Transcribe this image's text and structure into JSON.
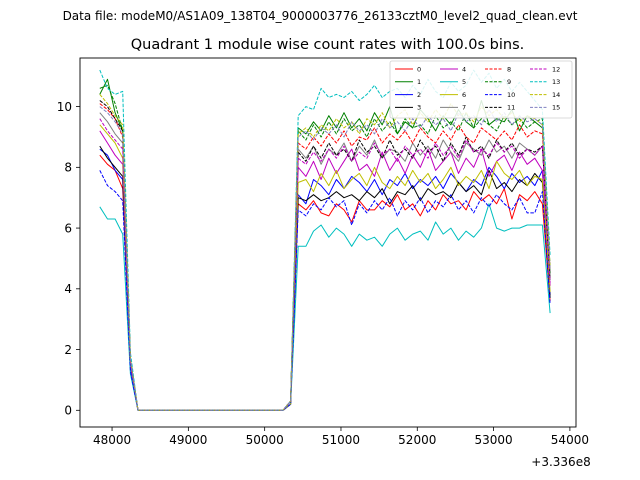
{
  "figure": {
    "suptitle": "Data file: modeM0/AS1A09_138T04_9000003776_26133cztM0_level2_quad_clean.evt"
  },
  "chart_data": {
    "type": "line",
    "title": "Quadrant 1 module wise count rates with 100.0s bins.",
    "xlabel": "",
    "ylabel": "",
    "x_offset_label": "+3.336e8",
    "xlim": [
      47580,
      54080
    ],
    "ylim": [
      -0.55,
      11.6
    ],
    "x_ticks": [
      48000,
      49000,
      50000,
      51000,
      52000,
      53000,
      54000
    ],
    "y_ticks": [
      0,
      2,
      4,
      6,
      8,
      10
    ],
    "grid": false,
    "legend": {
      "placement": "top-right",
      "columns": 4
    },
    "x": [
      47840,
      47940,
      48040,
      48140,
      48240,
      48340,
      48440,
      48540,
      48640,
      48740,
      48840,
      48940,
      49040,
      49140,
      49240,
      49340,
      49440,
      49540,
      49640,
      49740,
      49840,
      49940,
      50040,
      50140,
      50240,
      50340,
      50440,
      50540,
      50640,
      50740,
      50840,
      50940,
      51040,
      51140,
      51240,
      51340,
      51440,
      51540,
      51640,
      51740,
      51840,
      51940,
      52040,
      52140,
      52240,
      52340,
      52440,
      52540,
      52640,
      52740,
      52840,
      52940,
      53040,
      53140,
      53240,
      53340,
      53440,
      53540,
      53640,
      53740
    ],
    "series": [
      {
        "name": "0",
        "color": "#ff0000",
        "dash": "solid",
        "values": [
          8.4,
          8.1,
          7.9,
          7.3,
          1.4,
          0.0,
          0.0,
          0.0,
          0.0,
          0.0,
          0.0,
          0.0,
          0.0,
          0.0,
          0.0,
          0.0,
          0.0,
          0.0,
          0.0,
          0.0,
          0.0,
          0.0,
          0.0,
          0.0,
          0.0,
          0.2,
          6.8,
          6.6,
          6.9,
          6.5,
          6.4,
          6.8,
          6.6,
          6.2,
          6.9,
          6.6,
          6.6,
          6.9,
          6.7,
          7.1,
          6.6,
          6.8,
          6.4,
          6.9,
          6.6,
          7.1,
          6.8,
          6.9,
          6.6,
          7.2,
          6.9,
          7.1,
          6.8,
          7.3,
          6.3,
          7.1,
          6.9,
          7.2,
          6.8,
          3.6
        ]
      },
      {
        "name": "1",
        "color": "#008000",
        "dash": "solid",
        "values": [
          10.4,
          10.9,
          9.8,
          9.2,
          1.6,
          0.0,
          0.0,
          0.0,
          0.0,
          0.0,
          0.0,
          0.0,
          0.0,
          0.0,
          0.0,
          0.0,
          0.0,
          0.0,
          0.0,
          0.0,
          0.0,
          0.0,
          0.0,
          0.0,
          0.0,
          0.3,
          9.3,
          9.1,
          9.5,
          9.2,
          9.7,
          9.3,
          9.8,
          9.3,
          9.6,
          9.2,
          9.8,
          9.4,
          10.0,
          9.1,
          9.5,
          9.3,
          9.9,
          9.6,
          9.2,
          9.7,
          9.4,
          9.9,
          9.5,
          9.3,
          10.2,
          9.4,
          9.6,
          9.5,
          9.9,
          9.2,
          9.7,
          9.5,
          9.3,
          4.5
        ]
      },
      {
        "name": "2",
        "color": "#0000ff",
        "dash": "solid",
        "values": [
          8.6,
          8.4,
          7.9,
          7.6,
          1.4,
          0.0,
          0.0,
          0.0,
          0.0,
          0.0,
          0.0,
          0.0,
          0.0,
          0.0,
          0.0,
          0.0,
          0.0,
          0.0,
          0.0,
          0.0,
          0.0,
          0.0,
          0.0,
          0.0,
          0.0,
          0.2,
          7.1,
          6.8,
          7.6,
          7.4,
          7.1,
          7.6,
          7.3,
          7.7,
          7.5,
          7.2,
          7.6,
          7.1,
          7.6,
          7.4,
          7.8,
          7.3,
          7.6,
          7.4,
          7.7,
          7.3,
          7.8,
          7.5,
          7.2,
          7.6,
          7.4,
          8.0,
          7.7,
          7.3,
          7.8,
          7.5,
          7.7,
          7.4,
          7.9,
          3.8
        ]
      },
      {
        "name": "3",
        "color": "#000000",
        "dash": "solid",
        "values": [
          8.7,
          8.3,
          8.0,
          7.7,
          1.5,
          0.0,
          0.0,
          0.0,
          0.0,
          0.0,
          0.0,
          0.0,
          0.0,
          0.0,
          0.0,
          0.0,
          0.0,
          0.0,
          0.0,
          0.0,
          0.0,
          0.0,
          0.0,
          0.0,
          0.0,
          0.2,
          7.0,
          6.9,
          7.1,
          6.9,
          7.0,
          7.2,
          7.0,
          7.1,
          6.9,
          7.2,
          7.0,
          7.3,
          6.8,
          7.2,
          7.1,
          7.4,
          6.9,
          7.3,
          7.1,
          7.2,
          7.0,
          7.5,
          7.2,
          7.4,
          7.1,
          7.9,
          7.3,
          7.5,
          7.2,
          7.6,
          7.4,
          7.8,
          7.5,
          3.7
        ]
      },
      {
        "name": "4",
        "color": "#bf00bf",
        "dash": "solid",
        "values": [
          9.2,
          8.8,
          8.4,
          8.1,
          1.5,
          0.0,
          0.0,
          0.0,
          0.0,
          0.0,
          0.0,
          0.0,
          0.0,
          0.0,
          0.0,
          0.0,
          0.0,
          0.0,
          0.0,
          0.0,
          0.0,
          0.0,
          0.0,
          0.0,
          0.0,
          0.3,
          8.0,
          7.7,
          8.2,
          7.6,
          8.3,
          7.8,
          8.2,
          8.6,
          7.9,
          8.1,
          7.7,
          8.5,
          7.9,
          8.3,
          7.8,
          8.4,
          8.0,
          8.6,
          7.9,
          8.2,
          8.5,
          7.8,
          8.3,
          8.0,
          8.6,
          7.7,
          8.2,
          8.4,
          7.9,
          8.5,
          8.1,
          8.3,
          7.9,
          4.1
        ]
      },
      {
        "name": "5",
        "color": "#00bfbf",
        "dash": "solid",
        "values": [
          6.7,
          6.3,
          6.3,
          5.8,
          1.2,
          0.0,
          0.0,
          0.0,
          0.0,
          0.0,
          0.0,
          0.0,
          0.0,
          0.0,
          0.0,
          0.0,
          0.0,
          0.0,
          0.0,
          0.0,
          0.0,
          0.0,
          0.0,
          0.0,
          0.0,
          0.2,
          5.4,
          5.4,
          5.9,
          6.1,
          5.7,
          6.0,
          5.8,
          5.4,
          5.8,
          5.6,
          5.7,
          5.4,
          5.8,
          6.0,
          5.6,
          5.8,
          5.9,
          5.6,
          6.2,
          5.8,
          6.0,
          5.6,
          5.9,
          5.7,
          6.0,
          6.8,
          6.0,
          5.9,
          6.0,
          6.0,
          6.1,
          6.1,
          6.1,
          3.2
        ]
      },
      {
        "name": "6",
        "color": "#bfbf00",
        "dash": "solid",
        "values": [
          9.4,
          9.1,
          8.8,
          8.3,
          1.6,
          0.0,
          0.0,
          0.0,
          0.0,
          0.0,
          0.0,
          0.0,
          0.0,
          0.0,
          0.0,
          0.0,
          0.0,
          0.0,
          0.0,
          0.0,
          0.0,
          0.0,
          0.0,
          0.0,
          0.0,
          0.2,
          7.5,
          7.6,
          7.2,
          7.8,
          7.4,
          7.9,
          7.3,
          7.6,
          7.8,
          7.4,
          8.0,
          7.5,
          7.3,
          7.7,
          7.4,
          7.9,
          7.5,
          7.8,
          7.3,
          7.6,
          8.0,
          7.4,
          7.7,
          7.5,
          7.9,
          7.3,
          8.2,
          7.8,
          7.6,
          7.9,
          7.4,
          7.7,
          7.6,
          3.9
        ]
      },
      {
        "name": "7",
        "color": "#808080",
        "dash": "solid",
        "values": [
          9.8,
          9.5,
          9.1,
          8.8,
          1.6,
          0.0,
          0.0,
          0.0,
          0.0,
          0.0,
          0.0,
          0.0,
          0.0,
          0.0,
          0.0,
          0.0,
          0.0,
          0.0,
          0.0,
          0.0,
          0.0,
          0.0,
          0.0,
          0.0,
          0.0,
          0.3,
          8.6,
          8.3,
          8.7,
          8.1,
          8.6,
          8.4,
          8.8,
          8.2,
          8.7,
          8.4,
          8.9,
          8.3,
          8.6,
          8.5,
          8.2,
          8.8,
          8.4,
          8.7,
          8.3,
          8.9,
          8.5,
          8.2,
          8.8,
          8.6,
          8.4,
          8.9,
          8.5,
          8.7,
          8.3,
          8.8,
          8.6,
          8.4,
          8.7,
          4.3
        ]
      },
      {
        "name": "8",
        "color": "#ff0000",
        "dash": "dashed",
        "values": [
          10.1,
          9.9,
          9.6,
          9.0,
          1.7,
          0.0,
          0.0,
          0.0,
          0.0,
          0.0,
          0.0,
          0.0,
          0.0,
          0.0,
          0.0,
          0.0,
          0.0,
          0.0,
          0.0,
          0.0,
          0.0,
          0.0,
          0.0,
          0.0,
          0.0,
          0.3,
          8.8,
          8.6,
          9.0,
          8.7,
          9.1,
          8.8,
          9.2,
          8.7,
          9.0,
          8.9,
          9.3,
          8.8,
          9.1,
          8.9,
          9.2,
          8.8,
          9.3,
          9.0,
          8.8,
          9.2,
          8.9,
          9.4,
          9.0,
          8.8,
          9.3,
          9.1,
          8.9,
          9.2,
          8.9,
          9.4,
          9.0,
          9.2,
          9.1,
          4.6
        ]
      },
      {
        "name": "9",
        "color": "#008000",
        "dash": "dashed",
        "values": [
          10.6,
          10.7,
          10.1,
          9.2,
          1.7,
          0.0,
          0.0,
          0.0,
          0.0,
          0.0,
          0.0,
          0.0,
          0.0,
          0.0,
          0.0,
          0.0,
          0.0,
          0.0,
          0.0,
          0.0,
          0.0,
          0.0,
          0.0,
          0.0,
          0.0,
          0.3,
          9.2,
          8.9,
          9.4,
          9.0,
          9.5,
          9.1,
          9.6,
          9.2,
          9.4,
          9.0,
          9.6,
          9.2,
          9.5,
          9.1,
          9.6,
          9.3,
          9.4,
          9.1,
          9.7,
          9.3,
          9.5,
          9.2,
          9.8,
          9.3,
          9.6,
          9.4,
          9.2,
          9.7,
          9.4,
          9.6,
          9.3,
          9.5,
          9.6,
          4.7
        ]
      },
      {
        "name": "10",
        "color": "#0000ff",
        "dash": "dashed",
        "values": [
          7.9,
          7.4,
          7.2,
          6.9,
          1.3,
          0.0,
          0.0,
          0.0,
          0.0,
          0.0,
          0.0,
          0.0,
          0.0,
          0.0,
          0.0,
          0.0,
          0.0,
          0.0,
          0.0,
          0.0,
          0.0,
          0.0,
          0.0,
          0.0,
          0.0,
          0.2,
          6.6,
          6.4,
          6.8,
          6.6,
          7.0,
          6.7,
          6.9,
          6.1,
          6.8,
          6.5,
          6.9,
          6.6,
          7.0,
          6.4,
          6.9,
          6.6,
          7.0,
          6.5,
          6.9,
          6.7,
          7.1,
          6.6,
          6.9,
          6.5,
          7.0,
          6.7,
          7.1,
          6.8,
          6.6,
          7.0,
          6.5,
          6.5,
          7.2,
          3.5
        ]
      },
      {
        "name": "11",
        "color": "#000000",
        "dash": "dashed",
        "values": [
          10.2,
          10.0,
          9.6,
          9.2,
          1.7,
          0.0,
          0.0,
          0.0,
          0.0,
          0.0,
          0.0,
          0.0,
          0.0,
          0.0,
          0.0,
          0.0,
          0.0,
          0.0,
          0.0,
          0.0,
          0.0,
          0.0,
          0.0,
          0.0,
          0.0,
          0.3,
          8.5,
          8.2,
          8.7,
          8.3,
          8.8,
          8.4,
          8.6,
          8.2,
          8.9,
          8.5,
          8.7,
          8.3,
          8.9,
          8.4,
          8.6,
          8.3,
          8.9,
          8.5,
          8.7,
          8.2,
          8.8,
          8.4,
          9.0,
          8.5,
          8.7,
          8.3,
          8.9,
          8.5,
          8.8,
          8.4,
          8.6,
          8.5,
          8.7,
          4.3
        ]
      },
      {
        "name": "12",
        "color": "#bf00bf",
        "dash": "dashed",
        "values": [
          9.6,
          9.2,
          8.9,
          8.6,
          1.6,
          0.0,
          0.0,
          0.0,
          0.0,
          0.0,
          0.0,
          0.0,
          0.0,
          0.0,
          0.0,
          0.0,
          0.0,
          0.0,
          0.0,
          0.0,
          0.0,
          0.0,
          0.0,
          0.0,
          0.0,
          0.3,
          8.3,
          8.1,
          8.5,
          8.2,
          8.6,
          8.3,
          8.7,
          8.2,
          8.5,
          8.3,
          8.8,
          8.4,
          8.6,
          8.2,
          8.7,
          8.4,
          8.6,
          8.3,
          8.8,
          8.4,
          8.7,
          8.3,
          8.9,
          8.5,
          8.6,
          8.4,
          8.8,
          8.5,
          8.7,
          8.3,
          8.6,
          8.4,
          8.7,
          4.2
        ]
      },
      {
        "name": "13",
        "color": "#00bfbf",
        "dash": "dashed",
        "values": [
          11.2,
          10.6,
          10.4,
          10.5,
          1.9,
          0.0,
          0.0,
          0.0,
          0.0,
          0.0,
          0.0,
          0.0,
          0.0,
          0.0,
          0.0,
          0.0,
          0.0,
          0.0,
          0.0,
          0.0,
          0.0,
          0.0,
          0.0,
          0.0,
          0.0,
          0.3,
          9.7,
          10.0,
          9.9,
          10.6,
          10.3,
          10.4,
          10.3,
          10.5,
          10.2,
          10.4,
          10.7,
          10.3,
          10.5,
          10.6,
          10.3,
          10.7,
          10.4,
          10.9,
          10.5,
          10.3,
          10.8,
          10.5,
          10.7,
          11.2,
          10.8,
          11.1,
          10.6,
          10.9,
          10.5,
          10.8,
          10.5,
          10.2,
          9.9,
          5.1
        ]
      },
      {
        "name": "14",
        "color": "#bfbf00",
        "dash": "dashed",
        "values": [
          10.4,
          10.1,
          9.7,
          9.4,
          1.7,
          0.0,
          0.0,
          0.0,
          0.0,
          0.0,
          0.0,
          0.0,
          0.0,
          0.0,
          0.0,
          0.0,
          0.0,
          0.0,
          0.0,
          0.0,
          0.0,
          0.0,
          0.0,
          0.0,
          0.0,
          0.3,
          9.1,
          9.3,
          9.0,
          9.4,
          9.2,
          9.6,
          9.3,
          9.5,
          9.1,
          9.6,
          9.4,
          9.8,
          9.3,
          9.7,
          9.9,
          9.4,
          9.8,
          9.5,
          9.9,
          9.6,
          10.1,
          9.7,
          9.8,
          9.5,
          10.0,
          9.7,
          9.9,
          9.6,
          9.8,
          9.5,
          9.7,
          9.6,
          9.4,
          4.7
        ]
      },
      {
        "name": "15",
        "color": "#8080c0",
        "dash": "dashed",
        "values": [
          10.0,
          9.8,
          9.5,
          9.1,
          1.7,
          0.0,
          0.0,
          0.0,
          0.0,
          0.0,
          0.0,
          0.0,
          0.0,
          0.0,
          0.0,
          0.0,
          0.0,
          0.0,
          0.0,
          0.0,
          0.0,
          0.0,
          0.0,
          0.0,
          0.0,
          0.3,
          9.0,
          9.2,
          8.9,
          9.3,
          9.1,
          9.4,
          9.0,
          9.5,
          9.2,
          9.4,
          9.1,
          9.6,
          9.3,
          9.5,
          9.2,
          9.6,
          9.3,
          9.7,
          9.4,
          9.6,
          9.2,
          9.8,
          9.5,
          9.7,
          9.4,
          9.9,
          9.5,
          9.8,
          9.4,
          9.7,
          9.5,
          9.6,
          9.4,
          4.6
        ]
      }
    ]
  }
}
